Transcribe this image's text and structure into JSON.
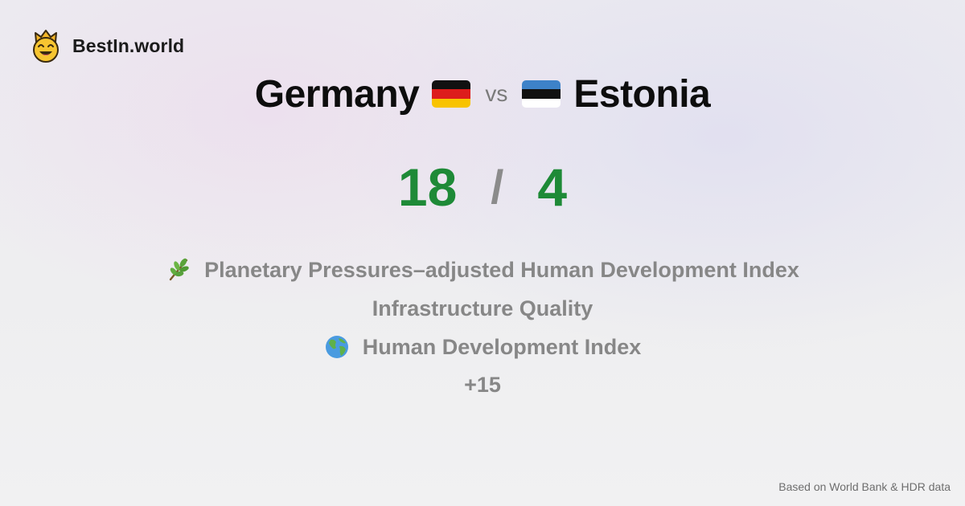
{
  "brand": {
    "name": "BestIn.world",
    "logo_icon": "crowned-smiley-icon"
  },
  "comparison": {
    "left_country": "Germany",
    "left_flag_icon": "germany-flag-icon",
    "vs_label": "vs",
    "right_country": "Estonia",
    "right_flag_icon": "estonia-flag-icon"
  },
  "scores": {
    "left": "18",
    "separator": "/",
    "right": "4",
    "color": "#1e8a37"
  },
  "categories": [
    {
      "icon": "herb-icon",
      "label": "Planetary Pressures–adjusted Human Development Index"
    },
    {
      "icon": "",
      "label": "Infrastructure Quality"
    },
    {
      "icon": "globe-icon",
      "label": "Human Development Index"
    }
  ],
  "more_label": "+15",
  "footer": {
    "source_note": "Based on World Bank & HDR data"
  }
}
